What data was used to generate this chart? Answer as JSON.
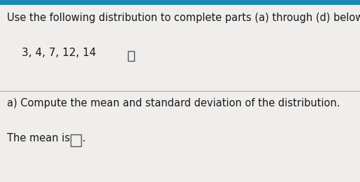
{
  "line1": "Use the following distribution to complete parts (a) through (d) below.",
  "line2": "3, 4, 7, 12, 14",
  "section_a_label": "a) Compute the mean and standard deviation of the distribution.",
  "mean_prefix": "The mean is ",
  "mean_suffix": ".",
  "bg_color_top": "#1a8ab5",
  "bg_color_main": "#f0eeec",
  "text_color": "#1a1a1a",
  "divider_color": "#aaaaaa",
  "box_edge_color": "#555555",
  "font_size_main": 10.5,
  "font_size_data": 11.0,
  "font_size_section": 10.5,
  "blue_bar_height": 0.025
}
